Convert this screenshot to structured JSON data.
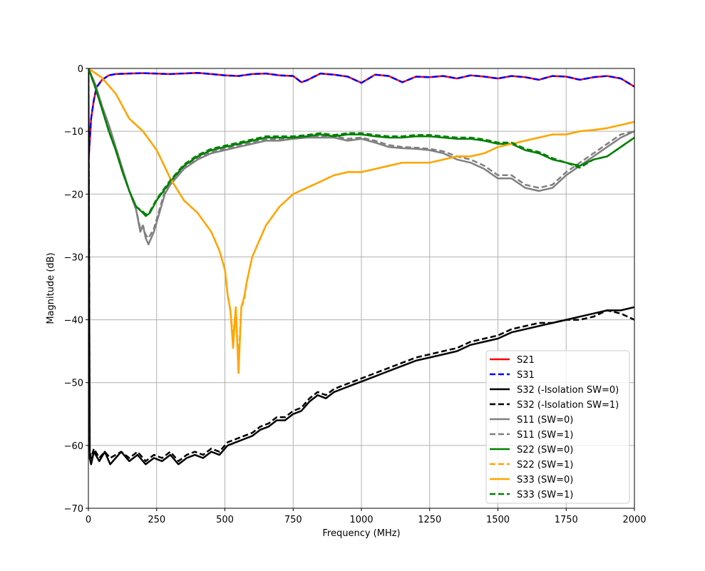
{
  "chart_data": {
    "type": "line",
    "title": "",
    "xlabel": "Frequency (MHz)",
    "ylabel": "Magnitude (dB)",
    "xlim": [
      0,
      2000
    ],
    "ylim": [
      -70,
      0
    ],
    "xticks": [
      0,
      250,
      500,
      750,
      1000,
      1250,
      1500,
      1750,
      2000
    ],
    "yticks": [
      0,
      -10,
      -20,
      -30,
      -40,
      -50,
      -60,
      -70
    ],
    "xtick_labels": [
      "0",
      "250",
      "500",
      "750",
      "1000",
      "1250",
      "1500",
      "1750",
      "2000"
    ],
    "ytick_labels": [
      "0",
      "−10",
      "−20",
      "−30",
      "−40",
      "−50",
      "−60",
      "−70"
    ],
    "grid": true,
    "legend_position": "lower-right",
    "series": [
      {
        "name": "S21",
        "color": "#ff0000",
        "dash": "solid",
        "x": [
          0,
          10,
          20,
          30,
          50,
          75,
          100,
          150,
          200,
          300,
          400,
          450,
          500,
          550,
          600,
          650,
          700,
          750,
          780,
          800,
          850,
          900,
          950,
          1000,
          1050,
          1100,
          1150,
          1200,
          1250,
          1300,
          1350,
          1400,
          1450,
          1500,
          1550,
          1600,
          1650,
          1700,
          1750,
          1800,
          1850,
          1900,
          1950,
          2000
        ],
        "y": [
          -15,
          -8,
          -5,
          -3,
          -1.8,
          -1.1,
          -0.9,
          -0.8,
          -0.75,
          -0.9,
          -0.7,
          -0.9,
          -1.1,
          -1.2,
          -0.9,
          -0.8,
          -1.1,
          -1.2,
          -2.2,
          -1.9,
          -0.8,
          -1.0,
          -1.3,
          -2.3,
          -1.0,
          -1.2,
          -2.2,
          -1.3,
          -1.4,
          -1.2,
          -1.6,
          -1.1,
          -1.3,
          -1.6,
          -1.2,
          -1.4,
          -1.8,
          -1.2,
          -1.3,
          -1.8,
          -1.4,
          -1.2,
          -1.6,
          -2.9
        ]
      },
      {
        "name": "S31",
        "color": "#0000ff",
        "dash": "dashed",
        "x": [
          0,
          10,
          20,
          30,
          50,
          75,
          100,
          150,
          200,
          300,
          400,
          450,
          500,
          550,
          600,
          650,
          700,
          750,
          780,
          800,
          850,
          900,
          950,
          1000,
          1050,
          1100,
          1150,
          1200,
          1250,
          1300,
          1350,
          1400,
          1450,
          1500,
          1550,
          1600,
          1650,
          1700,
          1750,
          1800,
          1850,
          1900,
          1950,
          2000
        ],
        "y": [
          -15,
          -8,
          -5,
          -3,
          -1.8,
          -1.1,
          -0.9,
          -0.8,
          -0.75,
          -0.9,
          -0.7,
          -0.9,
          -1.1,
          -1.2,
          -0.9,
          -0.8,
          -1.1,
          -1.2,
          -2.2,
          -1.9,
          -0.8,
          -1.0,
          -1.3,
          -2.3,
          -1.0,
          -1.2,
          -2.2,
          -1.3,
          -1.4,
          -1.2,
          -1.6,
          -1.1,
          -1.3,
          -1.6,
          -1.2,
          -1.4,
          -1.8,
          -1.2,
          -1.3,
          -1.8,
          -1.4,
          -1.2,
          -1.6,
          -2.9
        ]
      },
      {
        "name": "S32 (-Isolation SW=0)",
        "color": "#000000",
        "dash": "solid",
        "x": [
          0,
          5,
          10,
          20,
          40,
          60,
          80,
          100,
          120,
          150,
          180,
          210,
          240,
          270,
          300,
          330,
          360,
          390,
          420,
          450,
          480,
          510,
          540,
          570,
          600,
          630,
          660,
          690,
          720,
          750,
          780,
          810,
          840,
          870,
          900,
          930,
          960,
          990,
          1020,
          1050,
          1080,
          1110,
          1140,
          1170,
          1200,
          1250,
          1300,
          1350,
          1400,
          1450,
          1500,
          1550,
          1600,
          1650,
          1700,
          1750,
          1800,
          1850,
          1900,
          1950,
          2000
        ],
        "y": [
          0,
          -62,
          -63,
          -61,
          -62.5,
          -61,
          -63,
          -62,
          -61,
          -62.5,
          -61.5,
          -63,
          -62,
          -62.5,
          -61.5,
          -63,
          -62,
          -61.5,
          -62,
          -61,
          -61.5,
          -60,
          -59.5,
          -59,
          -58.5,
          -57.5,
          -57,
          -56,
          -56,
          -55,
          -54.5,
          -53,
          -52,
          -52.5,
          -51.5,
          -51,
          -50.5,
          -50,
          -49.5,
          -49,
          -48.5,
          -48,
          -47.5,
          -47,
          -46.5,
          -46,
          -45.5,
          -45,
          -44,
          -43.5,
          -43,
          -42,
          -41.5,
          -41,
          -40.5,
          -40,
          -39.5,
          -39,
          -38.5,
          -38.5,
          -38
        ]
      },
      {
        "name": "S32 (-Isolation SW=1)",
        "color": "#000000",
        "dash": "dashed",
        "x": [
          0,
          5,
          10,
          20,
          40,
          60,
          80,
          100,
          120,
          150,
          180,
          210,
          240,
          270,
          300,
          330,
          360,
          390,
          420,
          450,
          480,
          510,
          540,
          570,
          600,
          630,
          660,
          690,
          720,
          750,
          780,
          810,
          840,
          870,
          900,
          930,
          960,
          990,
          1020,
          1050,
          1080,
          1110,
          1140,
          1170,
          1200,
          1250,
          1300,
          1350,
          1400,
          1450,
          1500,
          1550,
          1600,
          1650,
          1700,
          1750,
          1800,
          1850,
          1900,
          1950,
          2000
        ],
        "y": [
          0,
          -61,
          -62,
          -60.5,
          -62,
          -61,
          -62,
          -61.5,
          -61,
          -62,
          -61,
          -62.5,
          -61.5,
          -62,
          -61,
          -62.5,
          -61.5,
          -61,
          -61.5,
          -60.5,
          -61,
          -59.5,
          -59,
          -58.5,
          -58,
          -57,
          -56.5,
          -55.5,
          -55.5,
          -54.5,
          -54,
          -52.5,
          -51.5,
          -52,
          -51,
          -50.5,
          -50,
          -49.5,
          -49,
          -48.5,
          -48,
          -47.5,
          -47,
          -46.5,
          -46,
          -45.5,
          -45,
          -44.5,
          -43.5,
          -43,
          -42.5,
          -41.5,
          -41,
          -40.5,
          -40.5,
          -40,
          -40,
          -39.5,
          -38.5,
          -39,
          -40
        ]
      },
      {
        "name": "S11 (SW=0)",
        "color": "#808080",
        "dash": "solid",
        "x": [
          0,
          25,
          50,
          75,
          100,
          125,
          150,
          175,
          190,
          200,
          210,
          220,
          240,
          260,
          280,
          300,
          350,
          400,
          450,
          500,
          550,
          600,
          650,
          700,
          750,
          800,
          850,
          900,
          950,
          1000,
          1050,
          1100,
          1150,
          1200,
          1250,
          1300,
          1350,
          1400,
          1450,
          1500,
          1550,
          1600,
          1650,
          1700,
          1750,
          1800,
          1850,
          1900,
          1950,
          2000
        ],
        "y": [
          0,
          -2.5,
          -6,
          -9,
          -12.5,
          -16,
          -19.5,
          -22.5,
          -26,
          -25,
          -27,
          -28,
          -26,
          -23,
          -20,
          -18.5,
          -16,
          -14.5,
          -13.5,
          -13,
          -12.5,
          -12,
          -11.5,
          -11.5,
          -11.2,
          -11,
          -11,
          -11,
          -11.5,
          -11.2,
          -11.8,
          -12.5,
          -12.7,
          -12.8,
          -13,
          -13.5,
          -14.5,
          -15,
          -16,
          -17.5,
          -17.5,
          -19,
          -19.5,
          -19,
          -17,
          -15.5,
          -14,
          -12.5,
          -11,
          -10
        ]
      },
      {
        "name": "S11 (SW=1)",
        "color": "#808080",
        "dash": "dashed",
        "x": [
          0,
          25,
          50,
          75,
          100,
          125,
          150,
          175,
          190,
          200,
          210,
          220,
          240,
          260,
          280,
          300,
          350,
          400,
          450,
          500,
          550,
          600,
          650,
          700,
          750,
          800,
          850,
          900,
          950,
          1000,
          1050,
          1100,
          1150,
          1200,
          1250,
          1300,
          1350,
          1400,
          1450,
          1500,
          1550,
          1600,
          1650,
          1700,
          1750,
          1800,
          1850,
          1900,
          1950,
          2000
        ],
        "y": [
          0,
          -2.5,
          -6,
          -9,
          -12.5,
          -16,
          -19.5,
          -22.5,
          -25.5,
          -25,
          -26.5,
          -27,
          -25.5,
          -22.5,
          -19.5,
          -18,
          -15.8,
          -14.2,
          -13.3,
          -12.8,
          -12.2,
          -11.8,
          -11.3,
          -11.2,
          -11,
          -10.8,
          -10.8,
          -10.8,
          -11.2,
          -11,
          -11.5,
          -12.2,
          -12.5,
          -12.6,
          -12.8,
          -13.2,
          -14,
          -14.5,
          -15.5,
          -17,
          -17,
          -18.5,
          -19,
          -18.5,
          -16.5,
          -15,
          -13.5,
          -12,
          -10.5,
          -10
        ]
      },
      {
        "name": "S22 (SW=0)",
        "color": "#008000",
        "dash": "solid",
        "x": [
          0,
          25,
          50,
          75,
          100,
          125,
          150,
          175,
          200,
          210,
          225,
          250,
          300,
          350,
          400,
          450,
          500,
          550,
          600,
          650,
          700,
          750,
          800,
          850,
          900,
          950,
          1000,
          1050,
          1100,
          1150,
          1200,
          1250,
          1300,
          1350,
          1400,
          1450,
          1500,
          1550,
          1600,
          1650,
          1700,
          1750,
          1800,
          1850,
          1900,
          1950,
          2000
        ],
        "y": [
          0,
          -3,
          -6.5,
          -10,
          -13,
          -16.5,
          -19.5,
          -22,
          -23,
          -23.5,
          -23,
          -21,
          -18,
          -15.5,
          -14,
          -13,
          -12.5,
          -12,
          -11.5,
          -11,
          -11,
          -11,
          -10.8,
          -10.5,
          -10.8,
          -10.5,
          -10.5,
          -10.8,
          -11,
          -11,
          -10.8,
          -10.8,
          -11,
          -11.2,
          -11.2,
          -11.5,
          -12,
          -12,
          -13,
          -13.5,
          -14.5,
          -15,
          -15.5,
          -14.5,
          -14,
          -12.5,
          -11
        ]
      },
      {
        "name": "S22 (SW=1)",
        "color": "#ffa500",
        "dash": "dashed",
        "x": [
          0,
          50,
          100,
          150,
          200,
          250,
          300,
          350,
          400,
          450,
          480,
          500,
          510,
          520,
          530,
          540,
          550,
          560,
          570,
          580,
          600,
          650,
          700,
          750,
          800,
          850,
          900,
          950,
          1000,
          1050,
          1100,
          1150,
          1200,
          1250,
          1300,
          1350,
          1400,
          1450,
          1500,
          1550,
          1600,
          1650,
          1700,
          1750,
          1800,
          1850,
          1900,
          1950,
          2000
        ],
        "y": [
          0,
          -1.5,
          -4,
          -8,
          -10,
          -13,
          -17.5,
          -21,
          -23,
          -26,
          -29,
          -32,
          -36,
          -38.5,
          -43,
          -38,
          -47,
          -38,
          -37,
          -34,
          -30,
          -25,
          -22,
          -20,
          -19,
          -18,
          -17,
          -16.5,
          -16.5,
          -16,
          -15.5,
          -15,
          -15,
          -15,
          -14.5,
          -14,
          -14,
          -13.5,
          -12.5,
          -12,
          -11.5,
          -11,
          -10.5,
          -10.5,
          -10,
          -9.8,
          -9.5,
          -9,
          -8.5
        ]
      },
      {
        "name": "S33 (SW=0)",
        "color": "#ffa500",
        "dash": "solid",
        "x": [
          0,
          50,
          100,
          150,
          200,
          250,
          300,
          350,
          400,
          450,
          480,
          500,
          510,
          520,
          530,
          540,
          550,
          560,
          570,
          580,
          600,
          650,
          700,
          750,
          800,
          850,
          900,
          950,
          1000,
          1050,
          1100,
          1150,
          1200,
          1250,
          1300,
          1350,
          1400,
          1450,
          1500,
          1550,
          1600,
          1650,
          1700,
          1750,
          1800,
          1850,
          1900,
          1950,
          2000
        ],
        "y": [
          0,
          -1.5,
          -4,
          -8,
          -10,
          -13,
          -17.5,
          -21,
          -23,
          -26,
          -29,
          -32,
          -36,
          -38.5,
          -44.5,
          -38,
          -48.5,
          -38,
          -36.5,
          -34,
          -30,
          -25,
          -22,
          -20,
          -19,
          -18,
          -17,
          -16.5,
          -16.5,
          -16,
          -15.5,
          -15,
          -15,
          -15,
          -14.5,
          -14,
          -14,
          -13.5,
          -12.5,
          -12,
          -11.5,
          -11,
          -10.5,
          -10.5,
          -10,
          -9.8,
          -9.5,
          -9,
          -8.5
        ]
      },
      {
        "name": "S33 (SW=1)",
        "color": "#008000",
        "dash": "dashed",
        "x": [
          0,
          25,
          50,
          75,
          100,
          125,
          150,
          175,
          200,
          210,
          225,
          250,
          300,
          350,
          400,
          450,
          500,
          550,
          600,
          650,
          700,
          750,
          800,
          850,
          900,
          950,
          1000,
          1050,
          1100,
          1150,
          1200,
          1250,
          1300,
          1350,
          1400,
          1450,
          1500,
          1550,
          1600,
          1650,
          1700,
          1750,
          1800,
          1850,
          1900,
          1950,
          2000
        ],
        "y": [
          0,
          -3,
          -6.5,
          -10,
          -13,
          -16.5,
          -19.5,
          -22,
          -22.8,
          -23.2,
          -22.8,
          -20.8,
          -17.8,
          -15.3,
          -13.8,
          -12.8,
          -12.3,
          -11.8,
          -11.3,
          -10.8,
          -10.8,
          -10.8,
          -10.6,
          -10.3,
          -10.6,
          -10.3,
          -10.3,
          -10.6,
          -10.8,
          -10.8,
          -10.6,
          -10.6,
          -10.8,
          -11,
          -11,
          -11.3,
          -11.8,
          -11.8,
          -12.8,
          -13.3,
          -14.3,
          -15,
          -15.8,
          -14.5,
          -14,
          -12.5,
          -11
        ]
      }
    ]
  }
}
